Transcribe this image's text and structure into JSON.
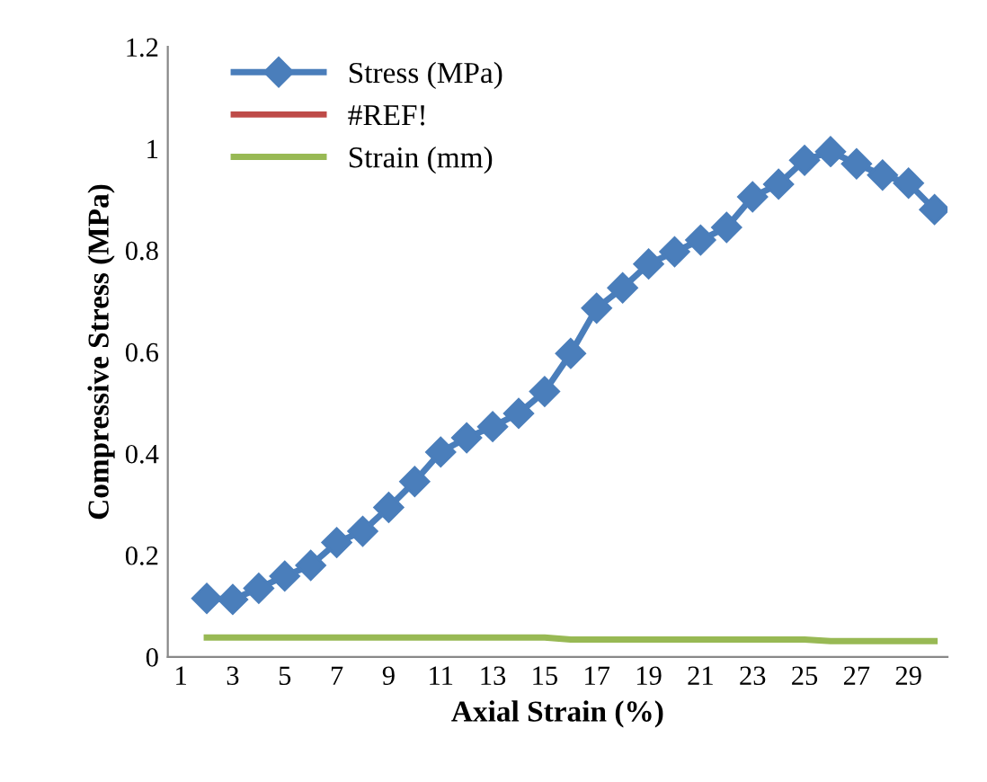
{
  "chart_data": {
    "type": "line",
    "xlabel": "Axial Strain (%)",
    "ylabel": "Compressive Stress (MPa)",
    "categories": [
      "1",
      null,
      "3",
      null,
      "5",
      null,
      "7",
      null,
      "9",
      null,
      "11",
      null,
      "13",
      null,
      "15",
      null,
      "17",
      null,
      "19",
      null,
      "21",
      null,
      "23",
      null,
      "25",
      null,
      "27",
      null,
      "29",
      null
    ],
    "series": [
      {
        "name": "Stress (MPa)",
        "color": "#4a7ebb",
        "marker": "diamond",
        "values": [
          null,
          0.115,
          0.113,
          0.135,
          0.159,
          0.18,
          0.225,
          0.247,
          0.294,
          0.345,
          0.403,
          0.431,
          0.453,
          0.479,
          0.522,
          0.597,
          0.686,
          0.726,
          0.773,
          0.797,
          0.82,
          0.845,
          0.905,
          0.93,
          0.977,
          0.994,
          0.97,
          0.948,
          0.932,
          0.88
        ]
      },
      {
        "name": "#REF!",
        "color": "#be4b48",
        "values": [
          null,
          null,
          null,
          null,
          null,
          null,
          null,
          null,
          null,
          null,
          null,
          null,
          null,
          null,
          null,
          null,
          null,
          null,
          null,
          null,
          null,
          null,
          null,
          null,
          null,
          null,
          null,
          null,
          null,
          null
        ]
      },
      {
        "name": "Strain (mm)",
        "color": "#98b954",
        "values": [
          null,
          0.038,
          0.038,
          0.038,
          0.038,
          0.038,
          0.038,
          0.038,
          0.038,
          0.038,
          0.038,
          0.038,
          0.038,
          0.038,
          0.038,
          0.034,
          0.034,
          0.034,
          0.034,
          0.034,
          0.034,
          0.034,
          0.034,
          0.034,
          0.034,
          0.031,
          0.031,
          0.031,
          0.031,
          0.031
        ]
      }
    ],
    "ylim": [
      0,
      1.2
    ],
    "yticks": [
      0,
      0.2,
      0.4,
      0.6,
      0.8,
      1,
      1.2
    ],
    "grid": false,
    "legend": "top left"
  }
}
